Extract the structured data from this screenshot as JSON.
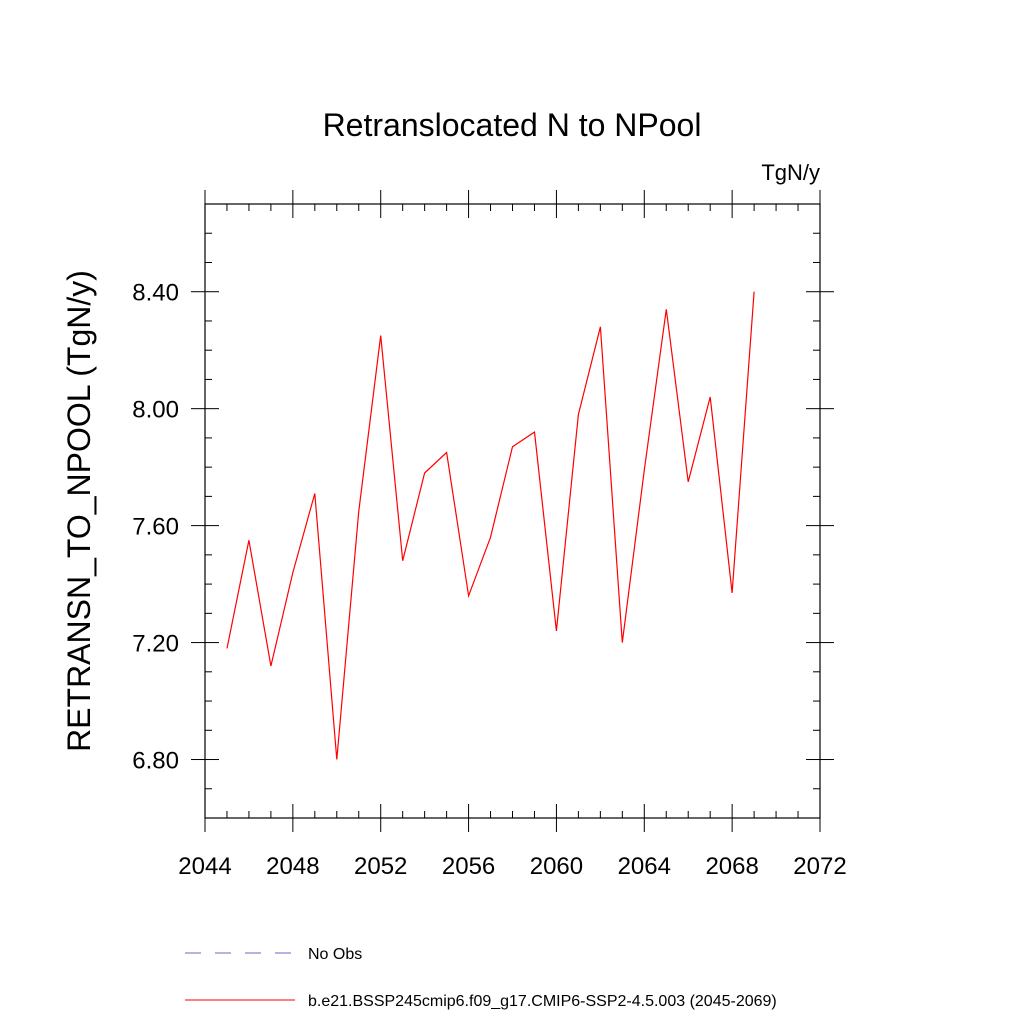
{
  "chart_data": {
    "type": "line",
    "title": "Retranslocated N to NPool",
    "units_label": "TgN/y",
    "xlabel": "",
    "ylabel": "RETRANSN_TO_NPOOL  (TgN/y)",
    "xlim": [
      2044,
      2072
    ],
    "ylim": [
      6.6,
      8.7
    ],
    "xticks": [
      2044,
      2048,
      2052,
      2056,
      2060,
      2064,
      2068,
      2072
    ],
    "xtick_labels": [
      "2044",
      "2048",
      "2052",
      "2056",
      "2060",
      "2064",
      "2068",
      "2072"
    ],
    "yticks": [
      6.8,
      7.2,
      7.6,
      8.0,
      8.4
    ],
    "ytick_labels": [
      "6.80",
      "7.20",
      "7.60",
      "8.00",
      "8.40"
    ],
    "grid": false,
    "legend_position": "bottom",
    "x": [
      2045,
      2046,
      2047,
      2048,
      2049,
      2050,
      2051,
      2052,
      2053,
      2054,
      2055,
      2056,
      2057,
      2058,
      2059,
      2060,
      2061,
      2062,
      2063,
      2064,
      2065,
      2066,
      2067,
      2068,
      2069
    ],
    "series": [
      {
        "name": "b.e21.BSSP245cmip6.f09_g17.CMIP6-SSP2-4.5.003 (2045-2069)",
        "color": "#ff0000",
        "values": [
          7.18,
          7.55,
          7.12,
          7.44,
          7.71,
          6.8,
          7.65,
          8.25,
          7.48,
          7.78,
          7.85,
          7.36,
          7.56,
          7.87,
          7.92,
          7.24,
          7.98,
          8.28,
          7.2,
          7.79,
          8.34,
          7.75,
          8.04,
          7.37,
          8.4
        ]
      }
    ],
    "legend": [
      {
        "label": "No Obs",
        "color": "#6a6ac0",
        "dashed": true
      },
      {
        "label": "b.e21.BSSP245cmip6.f09_g17.CMIP6-SSP2-4.5.003 (2045-2069)",
        "color": "#ff0000",
        "dashed": false
      }
    ]
  }
}
